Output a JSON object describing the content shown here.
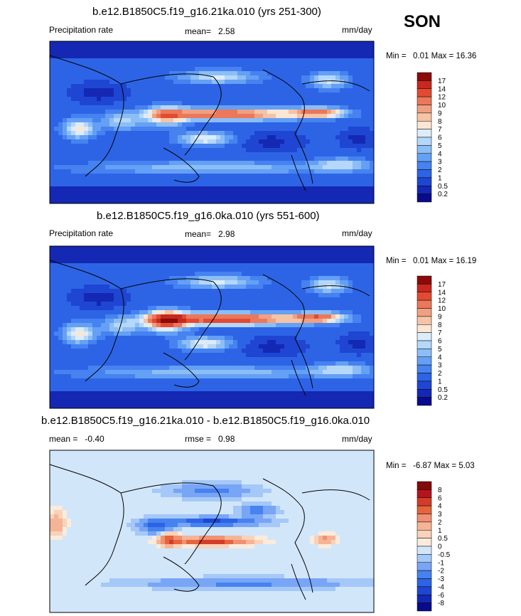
{
  "season": "SON",
  "panels": [
    {
      "title": "b.e12.B1850C5.f19_g16.21ka.010 (yrs 251-300)",
      "left_label": "Precipitation rate",
      "mean_label": "mean=",
      "mean_value": "2.58",
      "units": "mm/day",
      "min_label": "Min =",
      "min_value": "0.01",
      "max_label": "Max =",
      "max_value": "16.36"
    },
    {
      "title": "b.e12.B1850C5.f19_g16.0ka.010 (yrs 551-600)",
      "left_label": "Precipitation rate",
      "mean_label": "mean=",
      "mean_value": "2.98",
      "units": "mm/day",
      "min_label": "Min =",
      "min_value": "0.01",
      "max_label": "Max =",
      "max_value": "16.19"
    },
    {
      "title": "b.e12.B1850C5.f19_g16.21ka.010 - b.e12.B1850C5.f19_g16.0ka.010",
      "left_label": "mean =",
      "mean_label": "rmse =",
      "mean_value": "0.98",
      "left_value": "-0.40",
      "units": "mm/day",
      "min_label": "Min =",
      "min_value": "-6.87",
      "max_label": "Max =",
      "max_value": "5.03"
    }
  ],
  "chart_data": [
    {
      "type": "heatmap",
      "title": "b.e12.B1850C5.f19_g16.21ka.010 (yrs 251-300)",
      "variable": "Precipitation rate",
      "units": "mm/day",
      "mean": 2.58,
      "min": 0.01,
      "max": 16.36,
      "colorbar_levels": [
        "0.2",
        "0.5",
        "1",
        "2",
        "3",
        "4",
        "5",
        "6",
        "7",
        "8",
        "9",
        "10",
        "12",
        "14",
        "17"
      ],
      "colorbar_colors": [
        "#0a0a8c",
        "#1428b4",
        "#1e46d2",
        "#2d64e6",
        "#4682f0",
        "#64a0f5",
        "#8cbef5",
        "#b4d7fa",
        "#dcecfa",
        "#fae6d2",
        "#f5c3a5",
        "#f0a082",
        "#eb785a",
        "#e14b32",
        "#c8281e",
        "#8c0a0a"
      ]
    },
    {
      "type": "heatmap",
      "title": "b.e12.B1850C5.f19_g16.0ka.010 (yrs 551-600)",
      "variable": "Precipitation rate",
      "units": "mm/day",
      "mean": 2.98,
      "min": 0.01,
      "max": 16.19,
      "colorbar_levels": [
        "0.2",
        "0.5",
        "1",
        "2",
        "3",
        "4",
        "5",
        "6",
        "7",
        "8",
        "9",
        "10",
        "12",
        "14",
        "17"
      ],
      "colorbar_colors": [
        "#0a0a8c",
        "#1428b4",
        "#1e46d2",
        "#2d64e6",
        "#4682f0",
        "#64a0f5",
        "#8cbef5",
        "#b4d7fa",
        "#dcecfa",
        "#fae6d2",
        "#f5c3a5",
        "#f0a082",
        "#eb785a",
        "#e14b32",
        "#c8281e",
        "#8c0a0a"
      ]
    },
    {
      "type": "heatmap",
      "title": "b.e12.B1850C5.f19_g16.21ka.010 - b.e12.B1850C5.f19_g16.0ka.010",
      "units": "mm/day",
      "mean": -0.4,
      "rmse": 0.98,
      "min": -6.87,
      "max": 5.03,
      "colorbar_levels": [
        "-8",
        "-6",
        "-4",
        "-3",
        "-2",
        "-1",
        "-0.5",
        "0",
        "0.5",
        "1",
        "2",
        "3",
        "4",
        "6",
        "8"
      ],
      "colorbar_colors": [
        "#0a0a8c",
        "#1428b4",
        "#1e46d2",
        "#2d64e6",
        "#4682f0",
        "#78a5f5",
        "#a5c8f8",
        "#d2e6fa",
        "#faebdc",
        "#f8d2b9",
        "#f5b496",
        "#f09173",
        "#e6643c",
        "#d23c28",
        "#b4141e",
        "#820a0a"
      ]
    }
  ]
}
